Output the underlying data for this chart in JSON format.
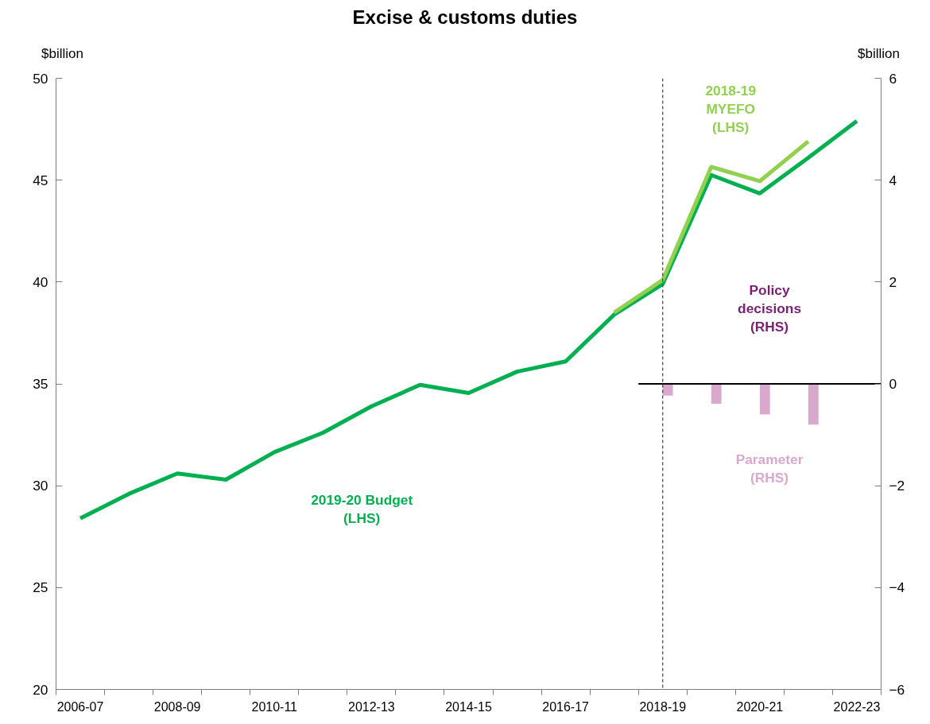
{
  "chart_data": {
    "type": "line",
    "title": "Excise & customs duties",
    "ylabel": "$billion",
    "y2label": "$billion",
    "categories": [
      "2006-07",
      null,
      "2008-09",
      null,
      "2010-11",
      null,
      "2012-13",
      null,
      "2014-15",
      null,
      "2016-17",
      null,
      "2018-19",
      null,
      "2020-21",
      null,
      "2022-23"
    ],
    "series": [
      {
        "name": "2019-20 Budget (LHS)",
        "color": "#00b050",
        "values": [
          28.4,
          29.6,
          30.6,
          30.3,
          31.65,
          32.6,
          33.9,
          34.95,
          34.55,
          35.6,
          36.1,
          38.4,
          39.9,
          45.25,
          44.35,
          46.1,
          47.9
        ]
      },
      {
        "name": "2018-19 MYEFO (LHS)",
        "color": "#92d050",
        "values": [
          null,
          null,
          null,
          null,
          null,
          null,
          null,
          null,
          null,
          null,
          null,
          38.5,
          40.1,
          45.65,
          44.95,
          46.9,
          null
        ]
      },
      {
        "name": "Policy decisions (RHS)",
        "type": "bar",
        "axis": "y2",
        "color": "#7b1f72",
        "values": [
          null,
          null,
          null,
          null,
          null,
          null,
          null,
          null,
          null,
          null,
          null,
          null,
          null,
          null,
          null,
          null,
          null
        ]
      },
      {
        "name": "Parameter (RHS)",
        "type": "bar",
        "axis": "y2",
        "color": "#d8a9cc",
        "values": [
          null,
          null,
          null,
          null,
          null,
          null,
          null,
          null,
          null,
          null,
          null,
          null,
          -0.23,
          -0.39,
          -0.6,
          -0.8,
          null
        ]
      }
    ],
    "ylim": [
      20,
      50
    ],
    "yticks": [
      20,
      25,
      30,
      35,
      40,
      45,
      50
    ],
    "y2lim": [
      -6,
      6
    ],
    "y2ticks": [
      -6,
      -4,
      -2,
      0,
      2,
      4,
      6
    ],
    "ref_lines": [
      {
        "axis": "x",
        "value": "2018-19",
        "line_style": "dashed",
        "color": "#404040"
      },
      {
        "axis": "y2",
        "value": 0,
        "color": "#000000"
      }
    ],
    "grid": false
  }
}
